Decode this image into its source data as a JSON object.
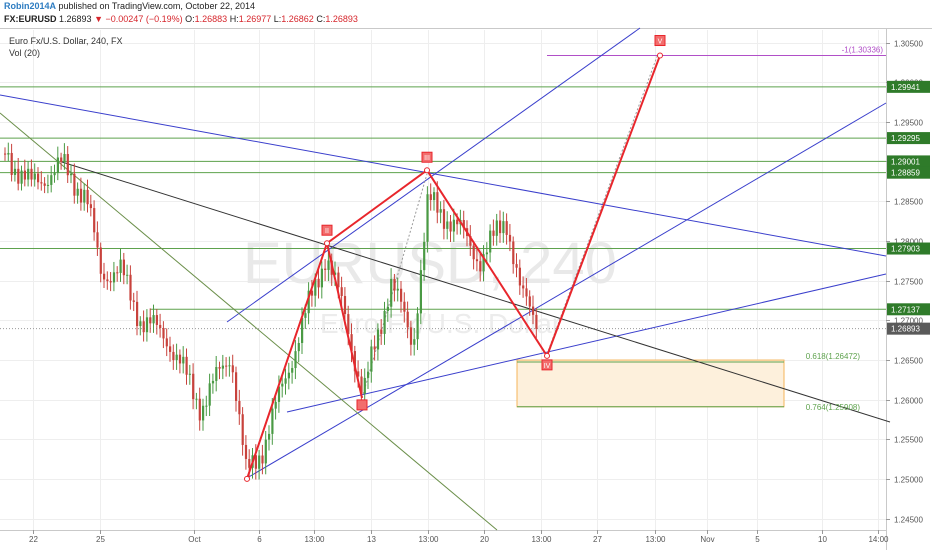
{
  "header": {
    "author": "Robin2014A",
    "published": " published on TradingView.com, October 22, 2014",
    "symbol": "FX:EURUSD",
    "last": "1.26893",
    "change": "−0.00247 (−0.19%)",
    "o_label": "O:",
    "o_value": "1.26883",
    "h_label": "H:",
    "h_value": "1.26977",
    "l_label": "L:",
    "l_value": "1.26862",
    "c_label": "C:",
    "c_value": "1.26893"
  },
  "chart_data": {
    "type": "candlestick",
    "instrument_title": "Euro Fx/U.S. Dollar, 240, FX",
    "indicator": "Vol (20)",
    "watermark_symbol": "EURUSD, 240",
    "watermark_name": "Euro Fx/U.S. Dollar",
    "ylim": [
      1.2417,
      1.3064
    ],
    "y_ticks": [
      "1.30500",
      "1.30000",
      "1.29500",
      "1.29000",
      "1.28500",
      "1.28000",
      "1.27500",
      "1.27000",
      "1.26500",
      "1.26000",
      "1.25500",
      "1.25000",
      "1.24500"
    ],
    "x_ticks": [
      "22",
      "25",
      "Oct",
      "6",
      "13:00",
      "13",
      "13:00",
      "20",
      "13:00",
      "27",
      "13:00",
      "Nov",
      "5",
      "10",
      "14:00"
    ],
    "price_labels": [
      "1.29941",
      "1.29295",
      "1.29001",
      "1.28859",
      "1.27903",
      "1.27137",
      "1.26893"
    ],
    "current_price": 1.26893,
    "fib_levels": [
      {
        "label": "-1(1.30336)",
        "value": 1.30336
      },
      {
        "label": "0.618(1.26472)",
        "value": 1.26472
      },
      {
        "label": "0.764(1.25908)",
        "value": 1.25908
      }
    ],
    "pattern_points": [
      {
        "label": "I",
        "value": 1.25
      },
      {
        "label": "II",
        "value": 1.2797
      },
      {
        "label": "III",
        "value": 1.2889
      },
      {
        "label": "IV",
        "value": 1.2655
      },
      {
        "label": "V",
        "value": 1.30336
      }
    ],
    "colors": {
      "up": "#4a9a44",
      "down": "#c8423c",
      "pattern": "#e8262c",
      "trendline": "#3a3fcc",
      "level": "#5ea24d",
      "fib": "#b14fc8",
      "zone": "#f7a440"
    }
  }
}
